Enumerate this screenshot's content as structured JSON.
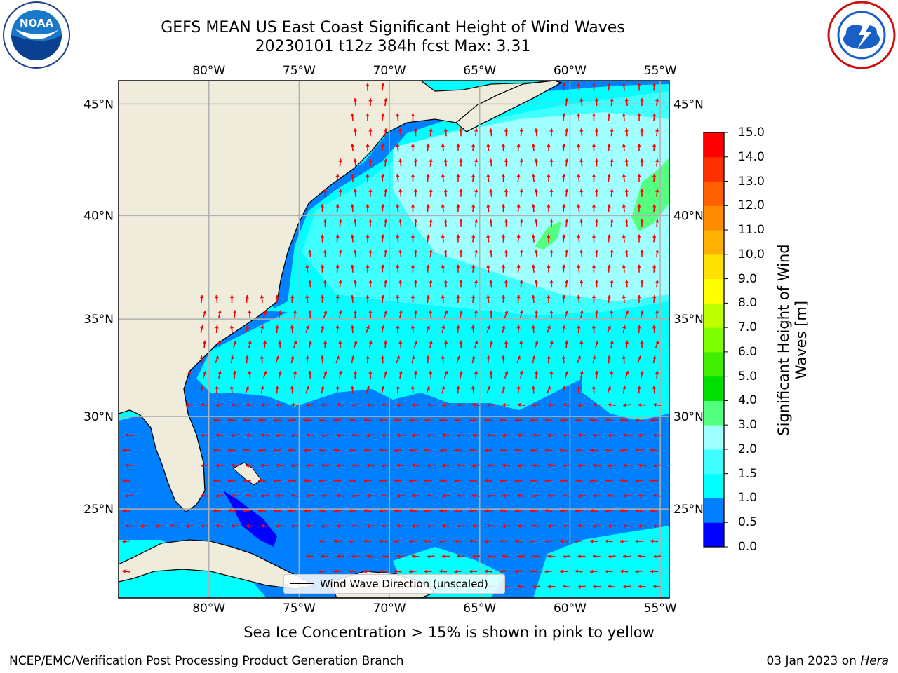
{
  "header": {
    "title": "GEFS MEAN US East Coast Significant Height of Wind Waves",
    "subtitle": "20230101 t12z 384h fcst   Max: 3.31"
  },
  "logos": {
    "left": "NOAA",
    "right": "NATIONAL WEATHER SERVICE"
  },
  "map": {
    "lon_labels": [
      "80°W",
      "75°W",
      "70°W",
      "65°W",
      "60°W",
      "55°W"
    ],
    "lat_labels": [
      "45°N",
      "40°N",
      "35°N",
      "30°N",
      "25°N"
    ],
    "lon_values": [
      -80,
      -75,
      -70,
      -65,
      -60,
      -55
    ],
    "lat_values": [
      45,
      40,
      35,
      30,
      25
    ],
    "extent": {
      "lon_min": -85,
      "lon_max": -54.5,
      "lat_min": 20,
      "lat_max": 46
    },
    "land_color": "#efecdc",
    "arrow_color": "#ff0000",
    "grid_color": "#b0b0b0",
    "legend_label": "Wind Wave Direction (unscaled)"
  },
  "colorbar": {
    "label": "Significant Height of Wind Waves [m]",
    "ticks": [
      "15.0",
      "14.0",
      "13.0",
      "12.0",
      "11.0",
      "10.0",
      "9.0",
      "8.0",
      "7.0",
      "6.0",
      "5.0",
      "4.0",
      "3.0",
      "2.0",
      "1.5",
      "1.0",
      "0.5",
      "0.0"
    ],
    "colors": [
      "#0000ff",
      "#0080ff",
      "#00ffff",
      "#40ffff",
      "#a0ffff",
      "#55ff80",
      "#00e000",
      "#40ee00",
      "#80ff00",
      "#c0ff00",
      "#ffff00",
      "#ffe000",
      "#ffb000",
      "#ff8c00",
      "#ff6000",
      "#ff3000",
      "#ff0000"
    ]
  },
  "caption": "Sea Ice Concentration > 15% is shown in pink to yellow",
  "footer": {
    "left": "NCEP/EMC/Verification Post Processing Product Generation Branch",
    "right_date": "03 Jan 2023 on ",
    "right_host": "Hera"
  }
}
